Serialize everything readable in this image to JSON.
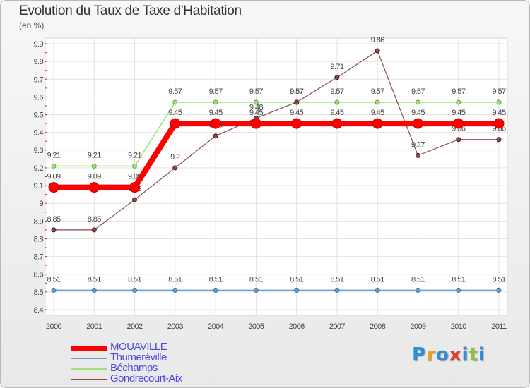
{
  "title": "Evolution du Taux de Taxe d'Habitation",
  "subtitle": "(en %)",
  "logo": {
    "letters": [
      "P",
      "r",
      "o",
      "x",
      "i",
      "t",
      "i"
    ],
    "colors": [
      "#2e8fd8",
      "#f2a21a",
      "#2e8fd8",
      "#e83a2a",
      "#2e8fd8",
      "#8bc43f",
      "#2e8fd8"
    ]
  },
  "chart_data": {
    "type": "line",
    "x": [
      "2000",
      "2001",
      "2002",
      "2003",
      "2004",
      "2005",
      "2006",
      "2007",
      "2008",
      "2009",
      "2010",
      "2011"
    ],
    "ylim": [
      8.4,
      9.9
    ],
    "yticks": [
      "8.4",
      "8.5",
      "8.6",
      "8.7",
      "8.8",
      "8.9",
      "9",
      "9.1",
      "9.2",
      "9.3",
      "9.4",
      "9.5",
      "9.6",
      "9.7",
      "9.8",
      "9.9"
    ],
    "grid": true,
    "legend_position": "bottom-left",
    "series": [
      {
        "name": "Thumeréville",
        "color": "#6a9fcf",
        "values": [
          8.51,
          8.51,
          8.51,
          8.51,
          8.51,
          8.51,
          8.51,
          8.51,
          8.51,
          8.51,
          8.51,
          8.51
        ],
        "labels": [
          "8.51",
          "8.51",
          "8.51",
          "8.51",
          "8.51",
          "8.51",
          "8.51",
          "8.51",
          "8.51",
          "8.51",
          "8.51",
          "8.51"
        ]
      },
      {
        "name": "Béchamps",
        "color": "#9fe07a",
        "values": [
          9.21,
          9.21,
          9.21,
          9.57,
          9.57,
          9.57,
          9.57,
          9.57,
          9.57,
          9.57,
          9.57,
          9.57
        ],
        "labels": [
          "9.21",
          "9.21",
          "9.21",
          "9.57",
          "9.57",
          "9.57",
          "9.57",
          "9.57",
          "9.57",
          "9.57",
          "9.57",
          "9.57"
        ]
      },
      {
        "name": "Gondrecourt-Aix",
        "color": "#8a4a4a",
        "values": [
          8.85,
          8.85,
          9.02,
          9.2,
          9.38,
          9.48,
          9.57,
          9.71,
          9.86,
          9.27,
          9.36,
          9.36
        ],
        "labels": [
          "8.85",
          "8.85",
          "9.02",
          "9.2",
          "9.38",
          "9.48",
          "9.57",
          "9.71",
          "9.86",
          "9.27",
          "9.36",
          "9.36"
        ]
      },
      {
        "name": "MOUAVILLE",
        "color": "#ff0000",
        "values": [
          9.09,
          9.09,
          9.09,
          9.45,
          9.45,
          9.45,
          9.45,
          9.45,
          9.45,
          9.45,
          9.45,
          9.45
        ],
        "labels": [
          "9.09",
          "9.09",
          "9.09",
          "9.45",
          "9.45",
          "9.45",
          "9.45",
          "9.45",
          "9.45",
          "9.45",
          "9.45",
          "9.45"
        ]
      }
    ],
    "legend_order": [
      "MOUAVILLE",
      "Thumeréville",
      "Béchamps",
      "Gondrecourt-Aix"
    ]
  }
}
